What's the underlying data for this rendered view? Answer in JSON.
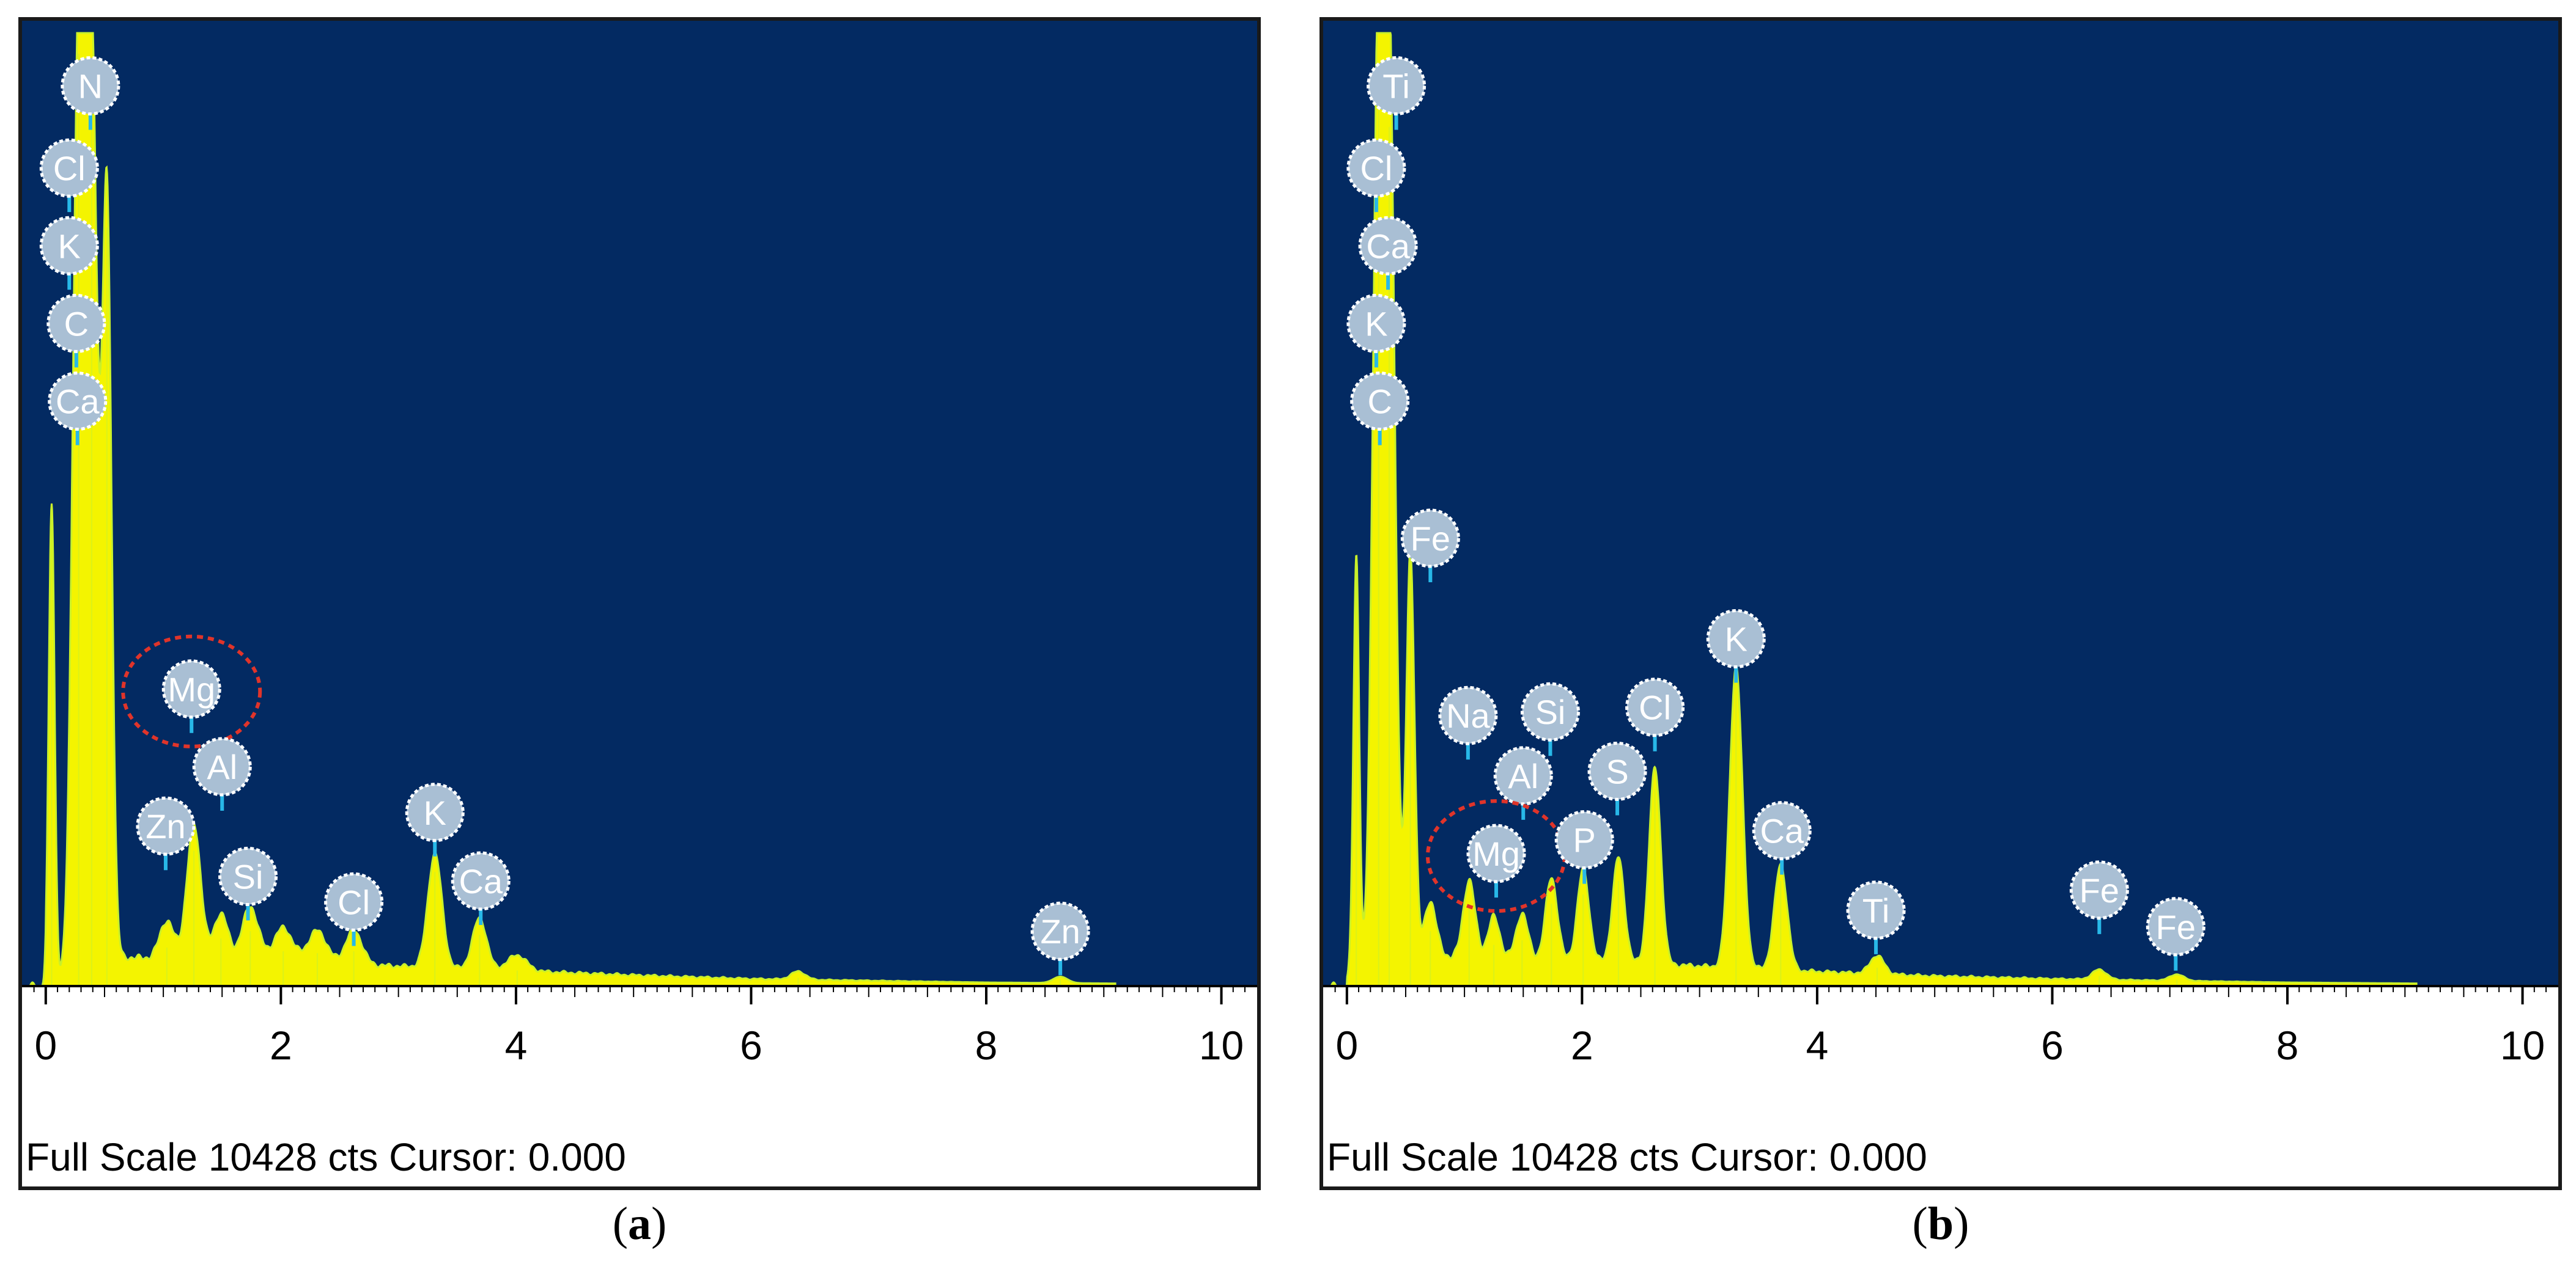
{
  "colors": {
    "plot_background": "#032a62",
    "spectrum_fill": "#f4f400",
    "spectrum_outline": "#c9f02a",
    "label_badge": "#a9bfd4",
    "label_pin": "#28b8e8",
    "highlight_ring": "#e0342a",
    "axis_text": "#000000"
  },
  "chart_data": [
    {
      "type": "area",
      "panel": "a",
      "caption_letter": "a",
      "caption_open": "(",
      "caption_close": ")",
      "footer_text": "Full Scale 10428 cts Cursor: 0.000",
      "xlim": [
        -0.15,
        10.2
      ],
      "ylim": [
        0,
        10428
      ],
      "x_ticks": [
        0,
        2,
        4,
        6,
        8,
        10
      ],
      "x_tick_labels": [
        "0",
        "2",
        "4",
        "6",
        "8",
        "10"
      ],
      "peaks": [
        {
          "x": 0.05,
          "y": 5200,
          "w": 0.025
        },
        {
          "x": 0.28,
          "y": 10200,
          "w": 0.05
        },
        {
          "x": 0.39,
          "y": 9900,
          "w": 0.05
        },
        {
          "x": 0.52,
          "y": 8300,
          "w": 0.04
        },
        {
          "x": 1.03,
          "y": 420,
          "w": 0.06
        },
        {
          "x": 1.26,
          "y": 1480,
          "w": 0.06
        },
        {
          "x": 1.49,
          "y": 520,
          "w": 0.06
        },
        {
          "x": 1.74,
          "y": 600,
          "w": 0.07
        },
        {
          "x": 2.02,
          "y": 380,
          "w": 0.08
        },
        {
          "x": 2.31,
          "y": 360,
          "w": 0.08
        },
        {
          "x": 2.62,
          "y": 380,
          "w": 0.07
        },
        {
          "x": 3.31,
          "y": 1250,
          "w": 0.06
        },
        {
          "x": 3.69,
          "y": 560,
          "w": 0.06
        },
        {
          "x": 4.01,
          "y": 170,
          "w": 0.08
        },
        {
          "x": 6.4,
          "y": 90,
          "w": 0.06
        },
        {
          "x": 8.63,
          "y": 70,
          "w": 0.06
        }
      ],
      "background": [
        [
          0,
          60
        ],
        [
          0.6,
          320
        ],
        [
          1.0,
          300
        ],
        [
          2.0,
          260
        ],
        [
          3.0,
          220
        ],
        [
          4.0,
          170
        ],
        [
          5.0,
          120
        ],
        [
          6.0,
          80
        ],
        [
          7.0,
          60
        ],
        [
          8.0,
          40
        ],
        [
          9.0,
          30
        ],
        [
          10.2,
          20
        ]
      ],
      "element_labels": [
        {
          "text": "N",
          "x": 0.38,
          "y": 9850
        },
        {
          "text": "Cl",
          "x": 0.2,
          "y": 8950
        },
        {
          "text": "K",
          "x": 0.2,
          "y": 8100
        },
        {
          "text": "C",
          "x": 0.26,
          "y": 7250
        },
        {
          "text": "Ca",
          "x": 0.27,
          "y": 6400
        },
        {
          "text": "Mg",
          "x": 1.24,
          "y": 3250
        },
        {
          "text": "Al",
          "x": 1.5,
          "y": 2400
        },
        {
          "text": "Zn",
          "x": 1.02,
          "y": 1750
        },
        {
          "text": "Si",
          "x": 1.72,
          "y": 1200
        },
        {
          "text": "Cl",
          "x": 2.62,
          "y": 920
        },
        {
          "text": "K",
          "x": 3.31,
          "y": 1900
        },
        {
          "text": "Ca",
          "x": 3.7,
          "y": 1150
        },
        {
          "text": "Zn",
          "x": 8.63,
          "y": 600
        }
      ],
      "highlighted": "Mg"
    },
    {
      "type": "area",
      "panel": "b",
      "caption_letter": "b",
      "caption_open": "(",
      "caption_close": ")",
      "footer_text": "Full Scale 10428 cts Cursor: 0.000",
      "xlim": [
        -0.15,
        10.2
      ],
      "ylim": [
        0,
        10428
      ],
      "x_ticks": [
        0,
        2,
        4,
        6,
        8,
        10
      ],
      "x_tick_labels": [
        "0",
        "2",
        "4",
        "6",
        "8",
        "10"
      ],
      "peaks": [
        {
          "x": 0.08,
          "y": 4600,
          "w": 0.025
        },
        {
          "x": 0.27,
          "y": 10000,
          "w": 0.05
        },
        {
          "x": 0.36,
          "y": 9400,
          "w": 0.05
        },
        {
          "x": 0.54,
          "y": 4450,
          "w": 0.035
        },
        {
          "x": 0.71,
          "y": 600,
          "w": 0.05
        },
        {
          "x": 1.04,
          "y": 850,
          "w": 0.05
        },
        {
          "x": 1.25,
          "y": 450,
          "w": 0.05
        },
        {
          "x": 1.49,
          "y": 500,
          "w": 0.05
        },
        {
          "x": 1.74,
          "y": 900,
          "w": 0.05
        },
        {
          "x": 2.01,
          "y": 1000,
          "w": 0.05
        },
        {
          "x": 2.31,
          "y": 1150,
          "w": 0.05
        },
        {
          "x": 2.62,
          "y": 2150,
          "w": 0.05
        },
        {
          "x": 3.31,
          "y": 3300,
          "w": 0.055
        },
        {
          "x": 3.69,
          "y": 1150,
          "w": 0.055
        },
        {
          "x": 4.51,
          "y": 200,
          "w": 0.06
        },
        {
          "x": 6.4,
          "y": 110,
          "w": 0.06
        },
        {
          "x": 7.06,
          "y": 70,
          "w": 0.06
        }
      ],
      "background": [
        [
          0,
          60
        ],
        [
          0.6,
          340
        ],
        [
          1.0,
          320
        ],
        [
          2.0,
          280
        ],
        [
          3.0,
          220
        ],
        [
          4.0,
          160
        ],
        [
          5.0,
          110
        ],
        [
          6.0,
          80
        ],
        [
          7.0,
          60
        ],
        [
          8.0,
          40
        ],
        [
          9.0,
          30
        ],
        [
          10.2,
          20
        ]
      ],
      "element_labels": [
        {
          "text": "Ti",
          "x": 0.42,
          "y": 9850
        },
        {
          "text": "Cl",
          "x": 0.25,
          "y": 8950
        },
        {
          "text": "Ca",
          "x": 0.35,
          "y": 8100
        },
        {
          "text": "K",
          "x": 0.25,
          "y": 7250
        },
        {
          "text": "C",
          "x": 0.28,
          "y": 6400
        },
        {
          "text": "Fe",
          "x": 0.71,
          "y": 4900
        },
        {
          "text": "Na",
          "x": 1.03,
          "y": 2960
        },
        {
          "text": "Si",
          "x": 1.73,
          "y": 3000
        },
        {
          "text": "Cl",
          "x": 2.62,
          "y": 3050
        },
        {
          "text": "K",
          "x": 3.31,
          "y": 3800
        },
        {
          "text": "Al",
          "x": 1.5,
          "y": 2300
        },
        {
          "text": "S",
          "x": 2.3,
          "y": 2350
        },
        {
          "text": "Mg",
          "x": 1.27,
          "y": 1450
        },
        {
          "text": "P",
          "x": 2.02,
          "y": 1600
        },
        {
          "text": "Ca",
          "x": 3.7,
          "y": 1700
        },
        {
          "text": "Ti",
          "x": 4.5,
          "y": 830
        },
        {
          "text": "Fe",
          "x": 6.4,
          "y": 1050
        },
        {
          "text": "Fe",
          "x": 7.05,
          "y": 650
        }
      ],
      "highlighted": "Mg"
    }
  ]
}
